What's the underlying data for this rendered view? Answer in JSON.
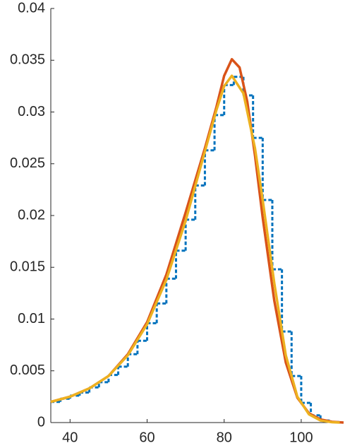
{
  "chart_data": {
    "type": "line",
    "xlim": [
      35,
      111
    ],
    "xticks": [
      40,
      60,
      80,
      100
    ],
    "ylim": [
      0,
      0.04
    ],
    "yticks": [
      0,
      0.005,
      0.01,
      0.015,
      0.02,
      0.025,
      0.03,
      0.035,
      0.04
    ],
    "series": [
      {
        "color": "#0072BD",
        "style": "step",
        "x": [
          35,
          37.5,
          40,
          42.5,
          45,
          47.5,
          50,
          52.5,
          55,
          57.5,
          60,
          62.5,
          65,
          67.5,
          70,
          72.5,
          75,
          77.5,
          80,
          82.5,
          85,
          87.5,
          90,
          92.5,
          95,
          97.5,
          100,
          102.5,
          105,
          107.5,
          110
        ],
        "values": [
          0.002,
          0.0023,
          0.0026,
          0.0029,
          0.0034,
          0.0039,
          0.0046,
          0.0054,
          0.0066,
          0.0079,
          0.0096,
          0.0115,
          0.0139,
          0.0166,
          0.0196,
          0.0229,
          0.0263,
          0.0297,
          0.0326,
          0.0334,
          0.0316,
          0.0275,
          0.0215,
          0.0148,
          0.0088,
          0.0045,
          0.0019,
          0.0007,
          0.0002,
          5e-05,
          0
        ]
      },
      {
        "color": "#D95319",
        "style": "line",
        "x": [
          35,
          40,
          45,
          50,
          55,
          60,
          65,
          70,
          75,
          78,
          80,
          82,
          84,
          86,
          88,
          90,
          93,
          96,
          99,
          102,
          105,
          108,
          111
        ],
        "values": [
          0.002,
          0.0025,
          0.0033,
          0.0045,
          0.0066,
          0.0097,
          0.0143,
          0.0203,
          0.0265,
          0.0305,
          0.0335,
          0.0351,
          0.0343,
          0.031,
          0.0258,
          0.0198,
          0.0118,
          0.0058,
          0.0024,
          0.0009,
          0.0003,
          8e-05,
          0
        ]
      },
      {
        "color": "#EDB120",
        "style": "line",
        "x": [
          35,
          40,
          45,
          50,
          55,
          60,
          65,
          70,
          75,
          78,
          80,
          82,
          85,
          88,
          90,
          93,
          96,
          99,
          102,
          105,
          108,
          110
        ],
        "values": [
          0.002,
          0.0025,
          0.0033,
          0.0045,
          0.0065,
          0.0095,
          0.0138,
          0.0195,
          0.0262,
          0.0302,
          0.0325,
          0.0335,
          0.0318,
          0.0265,
          0.0215,
          0.0135,
          0.0065,
          0.0025,
          0.0008,
          0.0002,
          3e-05,
          0
        ]
      }
    ]
  }
}
